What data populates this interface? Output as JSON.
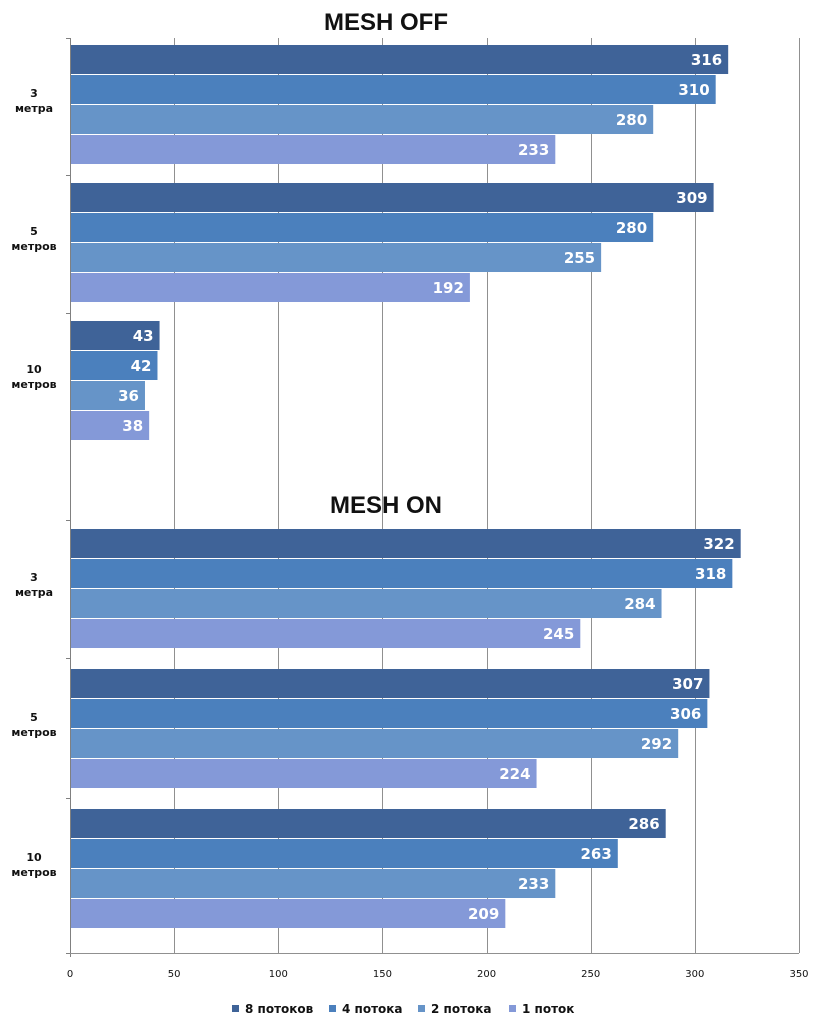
{
  "chart_data": {
    "type": "bar",
    "orientation": "horizontal",
    "xlim": [
      0,
      350
    ],
    "x_ticks": [
      "0",
      "50",
      "100",
      "150",
      "200",
      "250",
      "300",
      "350"
    ],
    "grid": true,
    "legend_position": "bottom",
    "series_colors": [
      "#3f6398",
      "#4b80bd",
      "#6694c8",
      "#8499d8"
    ],
    "legend": [
      "8 потоков",
      "4 потока",
      "2 потока",
      "1 поток"
    ],
    "panels": [
      {
        "title": "MESH OFF",
        "groups": [
          {
            "label_lines": [
              "3",
              "метра"
            ],
            "values": [
              316,
              310,
              280,
              233
            ]
          },
          {
            "label_lines": [
              "5",
              "метров"
            ],
            "values": [
              309,
              280,
              255,
              192
            ]
          },
          {
            "label_lines": [
              "10",
              "метров"
            ],
            "values": [
              43,
              42,
              36,
              38
            ]
          }
        ]
      },
      {
        "title": "MESH ON",
        "groups": [
          {
            "label_lines": [
              "3",
              "метра"
            ],
            "values": [
              322,
              318,
              284,
              245
            ]
          },
          {
            "label_lines": [
              "5",
              "метров"
            ],
            "values": [
              307,
              306,
              292,
              224
            ]
          },
          {
            "label_lines": [
              "10",
              "метров"
            ],
            "values": [
              286,
              263,
              233,
              209
            ]
          }
        ]
      }
    ]
  }
}
